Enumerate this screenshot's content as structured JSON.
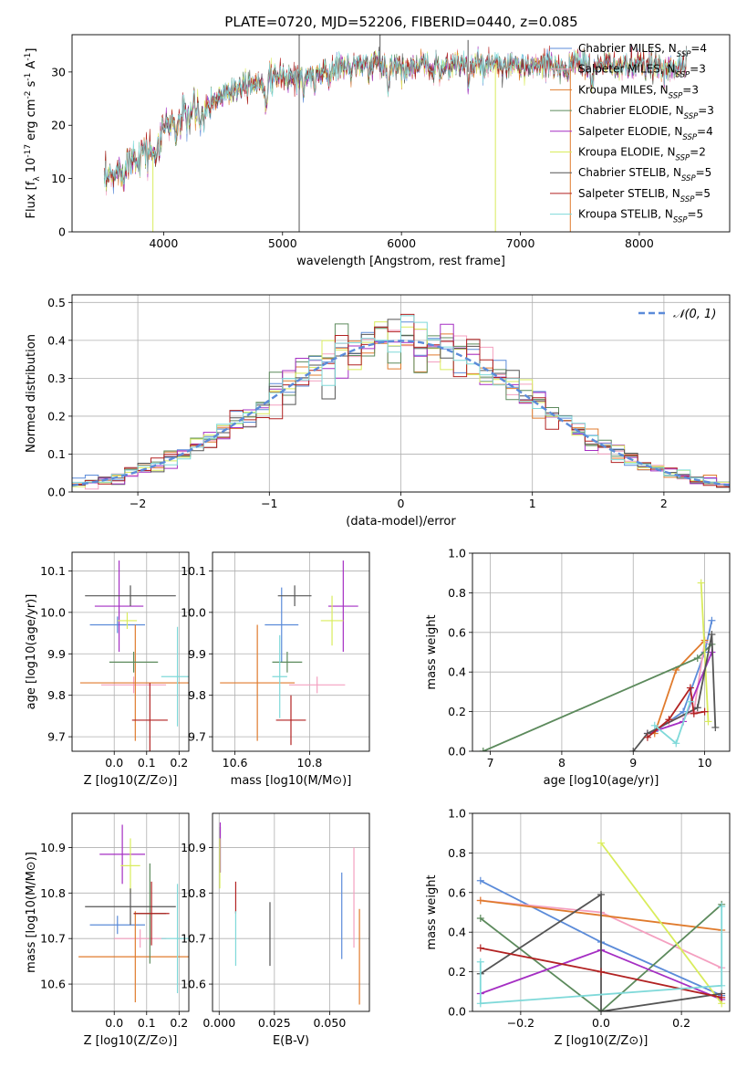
{
  "figure_title": "PLATE=0720, MJD=52206, FIBERID=0440, z=0.085",
  "colors": {
    "Chabrier MILES": "#5b8bd9",
    "Salpeter MILES": "#f4a0c0",
    "Kroupa MILES": "#e07b2d",
    "Chabrier ELODIE": "#5c8a5c",
    "Salpeter ELODIE": "#a52fc3",
    "Kroupa ELODIE": "#d9ec5c",
    "Chabrier STELIB": "#555555",
    "Salpeter STELIB": "#b22222",
    "Kroupa STELIB": "#7fd9d9"
  },
  "chart_data": [
    {
      "id": "spectrum",
      "type": "line",
      "xlabel": "wavelength [Angstrom, rest frame]",
      "ylabel": "Flux [f_λ 10^-17 erg cm^-2 s^-1 A^-1]",
      "xlim": [
        3230,
        8760
      ],
      "ylim": [
        0,
        37
      ],
      "xticks": [
        4000,
        5000,
        6000,
        7000,
        8000
      ],
      "yticks": [
        0,
        10,
        20,
        30
      ],
      "grid": false,
      "legend_position": "lower-right",
      "legend": [
        {
          "name": "Chabrier MILES",
          "n_ssp": 4
        },
        {
          "name": "Salpeter MILES",
          "n_ssp": 3
        },
        {
          "name": "Kroupa MILES",
          "n_ssp": 3
        },
        {
          "name": "Chabrier ELODIE",
          "n_ssp": 3
        },
        {
          "name": "Salpeter ELODIE",
          "n_ssp": 4
        },
        {
          "name": "Kroupa ELODIE",
          "n_ssp": 2
        },
        {
          "name": "Chabrier STELIB",
          "n_ssp": 5
        },
        {
          "name": "Salpeter STELIB",
          "n_ssp": 5
        },
        {
          "name": "Kroupa STELIB",
          "n_ssp": 5
        }
      ],
      "continuum": [
        [
          3500,
          9
        ],
        [
          3600,
          11
        ],
        [
          3700,
          13
        ],
        [
          3800,
          15
        ],
        [
          3900,
          15
        ],
        [
          4000,
          20
        ],
        [
          4100,
          21
        ],
        [
          4200,
          22
        ],
        [
          4300,
          23
        ],
        [
          4400,
          24
        ],
        [
          4500,
          26
        ],
        [
          4600,
          27
        ],
        [
          4700,
          28
        ],
        [
          4800,
          28
        ],
        [
          4900,
          28.5
        ],
        [
          5000,
          29
        ],
        [
          5100,
          29
        ],
        [
          5200,
          29.5
        ],
        [
          5300,
          30
        ],
        [
          5400,
          30
        ],
        [
          5500,
          31
        ],
        [
          5600,
          31
        ],
        [
          5700,
          31
        ],
        [
          5800,
          31.5
        ],
        [
          5900,
          31
        ],
        [
          6000,
          31
        ],
        [
          6100,
          31
        ],
        [
          6200,
          31
        ],
        [
          6300,
          31
        ],
        [
          6400,
          31
        ],
        [
          6500,
          31.5
        ],
        [
          6600,
          31
        ],
        [
          6700,
          31
        ],
        [
          6800,
          31
        ],
        [
          6900,
          31
        ],
        [
          7000,
          31
        ],
        [
          7100,
          31
        ],
        [
          7200,
          31
        ],
        [
          7300,
          31
        ],
        [
          7400,
          31
        ],
        [
          7500,
          31.5
        ],
        [
          7600,
          31
        ],
        [
          7700,
          31
        ],
        [
          7800,
          31
        ],
        [
          7900,
          31
        ],
        [
          8000,
          31
        ],
        [
          8100,
          31
        ],
        [
          8200,
          31
        ],
        [
          8300,
          31
        ],
        [
          8400,
          31
        ]
      ],
      "spikes": [
        {
          "x": 5140,
          "series": "Chabrier STELIB",
          "y_low": 0,
          "y_high": 37
        },
        {
          "x": 3910,
          "series": "Kroupa ELODIE",
          "y_low": 0,
          "y_high": 14
        },
        {
          "x": 6790,
          "series": "Kroupa ELODIE",
          "y_low": 0,
          "y_high": 31
        },
        {
          "x": 7420,
          "series": "Kroupa MILES",
          "y_low": 0,
          "y_high": 31
        },
        {
          "x": 5820,
          "series": "Chabrier STELIB",
          "y_low": 30,
          "y_high": 37
        },
        {
          "x": 6560,
          "series": "Chabrier STELIB",
          "y_low": 30,
          "y_high": 36
        }
      ]
    },
    {
      "id": "residuals",
      "type": "histogram",
      "xlabel": "(data-model)/error",
      "ylabel": "Normed distribution",
      "xlim": [
        -2.5,
        2.5
      ],
      "ylim": [
        0,
        0.52
      ],
      "xticks": [
        -2,
        -1,
        0,
        1,
        2
      ],
      "yticks": [
        0.0,
        0.1,
        0.2,
        0.3,
        0.4,
        0.5
      ],
      "grid": true,
      "legend_position": "upper-right",
      "reference_curve": {
        "name": "𝒩(0, 1)",
        "mean": 0,
        "sigma": 1
      },
      "bin_width": 0.1
    },
    {
      "id": "age_vs_Z",
      "type": "errorbar",
      "xlabel": "Z [log10(Z/Z⊙)]",
      "ylabel": "age [log10(age/yr)]",
      "xlim": [
        -0.13,
        0.23
      ],
      "ylim": [
        9.665,
        10.145
      ],
      "xticks": [
        0.0,
        0.1,
        0.2
      ],
      "yticks": [
        9.7,
        9.8,
        9.9,
        10.0,
        10.1
      ],
      "grid": true,
      "points": [
        {
          "series": "Chabrier MILES",
          "x": 0.01,
          "xerr": 0.085,
          "y": 9.97,
          "yerr": 0.02
        },
        {
          "series": "Salpeter MILES",
          "x": 0.06,
          "xerr": 0.1,
          "y": 9.825,
          "yerr": 0.02
        },
        {
          "series": "Kroupa MILES",
          "x": 0.065,
          "xerr": 0.17,
          "y": 9.83,
          "yerr": 0.14
        },
        {
          "series": "Chabrier ELODIE",
          "x": 0.06,
          "xerr": 0.075,
          "y": 9.88,
          "yerr": 0.025
        },
        {
          "series": "Salpeter ELODIE",
          "x": 0.015,
          "xerr": 0.075,
          "y": 10.015,
          "yerr": 0.11
        },
        {
          "series": "Kroupa ELODIE",
          "x": 0.04,
          "xerr": 0.03,
          "y": 9.98,
          "yerr": 0.02
        },
        {
          "series": "Chabrier STELIB",
          "x": 0.05,
          "xerr": 0.14,
          "y": 10.04,
          "yerr": 0.025
        },
        {
          "series": "Salpeter STELIB",
          "x": 0.11,
          "xerr": 0.055,
          "y": 9.74,
          "yerr": 0.09
        },
        {
          "series": "Kroupa STELIB",
          "x": 0.195,
          "xerr": 0.05,
          "y": 9.845,
          "yerr": 0.12
        }
      ]
    },
    {
      "id": "age_vs_mass",
      "type": "errorbar",
      "xlabel": "mass [log10(M/M⊙)]",
      "ylabel": "",
      "xlim": [
        10.54,
        10.96
      ],
      "ylim": [
        9.665,
        10.145
      ],
      "xticks": [
        10.6,
        10.8
      ],
      "yticks": [
        9.7,
        9.8,
        9.9,
        10.0,
        10.1
      ],
      "grid": true,
      "points": [
        {
          "series": "Chabrier MILES",
          "x": 10.725,
          "xerr": 0.045,
          "y": 9.97,
          "yerr": 0.09
        },
        {
          "series": "Salpeter MILES",
          "x": 10.82,
          "xerr": 0.075,
          "y": 9.825,
          "yerr": 0.02
        },
        {
          "series": "Kroupa MILES",
          "x": 10.66,
          "xerr": 0.1,
          "y": 9.83,
          "yerr": 0.14
        },
        {
          "series": "Chabrier ELODIE",
          "x": 10.74,
          "xerr": 0.04,
          "y": 9.88,
          "yerr": 0.025
        },
        {
          "series": "Salpeter ELODIE",
          "x": 10.89,
          "xerr": 0.04,
          "y": 10.015,
          "yerr": 0.11
        },
        {
          "series": "Kroupa ELODIE",
          "x": 10.86,
          "xerr": 0.03,
          "y": 9.98,
          "yerr": 0.06
        },
        {
          "series": "Chabrier STELIB",
          "x": 10.76,
          "xerr": 0.045,
          "y": 10.04,
          "yerr": 0.025
        },
        {
          "series": "Salpeter STELIB",
          "x": 10.75,
          "xerr": 0.04,
          "y": 9.74,
          "yerr": 0.06
        },
        {
          "series": "Kroupa STELIB",
          "x": 10.72,
          "xerr": 0.02,
          "y": 9.845,
          "yerr": 0.1
        }
      ]
    },
    {
      "id": "weight_vs_age",
      "type": "line",
      "xlabel": "age [log10(age/yr)]",
      "ylabel": "mass weight",
      "xlim": [
        6.75,
        10.35
      ],
      "ylim": [
        0,
        1
      ],
      "xticks": [
        7,
        8,
        9,
        10
      ],
      "yticks": [
        0.0,
        0.2,
        0.4,
        0.6,
        0.8,
        1.0
      ],
      "grid": true,
      "series": [
        {
          "name": "Chabrier MILES",
          "x": [
            9.3,
            9.7,
            10.0,
            10.1
          ],
          "y": [
            0.1,
            0.2,
            0.5,
            0.66
          ]
        },
        {
          "name": "Salpeter MILES",
          "x": [
            9.5,
            9.85,
            10.0
          ],
          "y": [
            0.15,
            0.2,
            0.55
          ]
        },
        {
          "name": "Kroupa MILES",
          "x": [
            9.3,
            9.6,
            10.0
          ],
          "y": [
            0.09,
            0.41,
            0.56
          ]
        },
        {
          "name": "Chabrier ELODIE",
          "x": [
            6.9,
            9.9,
            10.1
          ],
          "y": [
            0.0,
            0.47,
            0.54
          ]
        },
        {
          "name": "Salpeter ELODIE",
          "x": [
            9.2,
            9.7,
            10.1
          ],
          "y": [
            0.09,
            0.15,
            0.5
          ]
        },
        {
          "name": "Kroupa ELODIE",
          "x": [
            9.95,
            10.05
          ],
          "y": [
            0.85,
            0.15
          ]
        },
        {
          "name": "Chabrier STELIB",
          "x": [
            9.0,
            9.2,
            9.9,
            10.1,
            10.15
          ],
          "y": [
            0.0,
            0.09,
            0.22,
            0.59,
            0.12
          ]
        },
        {
          "name": "Salpeter STELIB",
          "x": [
            9.2,
            9.5,
            9.8,
            9.85,
            10.0
          ],
          "y": [
            0.07,
            0.16,
            0.32,
            0.19,
            0.2
          ]
        },
        {
          "name": "Kroupa STELIB",
          "x": [
            9.3,
            9.6,
            9.8
          ],
          "y": [
            0.13,
            0.04,
            0.25
          ]
        }
      ]
    },
    {
      "id": "mass_vs_Z",
      "type": "errorbar",
      "xlabel": "Z [log10(Z/Z⊙)]",
      "ylabel": "mass [log10(M/M⊙)]",
      "xlim": [
        -0.13,
        0.23
      ],
      "ylim": [
        10.54,
        10.975
      ],
      "xticks": [
        0.0,
        0.1,
        0.2
      ],
      "yticks": [
        10.6,
        10.7,
        10.8,
        10.9
      ],
      "grid": true,
      "points": [
        {
          "series": "Chabrier MILES",
          "x": 0.01,
          "xerr": 0.085,
          "y": 10.73,
          "yerr": 0.02
        },
        {
          "series": "Salpeter MILES",
          "x": 0.08,
          "xerr": 0.08,
          "y": 10.7,
          "yerr": 0.02
        },
        {
          "series": "Kroupa MILES",
          "x": 0.065,
          "xerr": 0.175,
          "y": 10.66,
          "yerr": 0.1
        },
        {
          "series": "Chabrier ELODIE",
          "x": 0.11,
          "xerr": 0.05,
          "y": 10.755,
          "yerr": 0.11
        },
        {
          "series": "Salpeter ELODIE",
          "x": 0.025,
          "xerr": 0.07,
          "y": 10.885,
          "yerr": 0.065
        },
        {
          "series": "Kroupa ELODIE",
          "x": 0.05,
          "xerr": 0.03,
          "y": 10.86,
          "yerr": 0.06
        },
        {
          "series": "Chabrier STELIB",
          "x": 0.05,
          "xerr": 0.14,
          "y": 10.77,
          "yerr": 0.04
        },
        {
          "series": "Salpeter STELIB",
          "x": 0.115,
          "xerr": 0.055,
          "y": 10.755,
          "yerr": 0.07
        },
        {
          "series": "Kroupa STELIB",
          "x": 0.195,
          "xerr": 0.05,
          "y": 10.7,
          "yerr": 0.12
        }
      ]
    },
    {
      "id": "mass_vs_ebv",
      "type": "errorbar",
      "xlabel": "E(B-V)",
      "ylabel": "",
      "xlim": [
        -0.003,
        0.068
      ],
      "ylim": [
        10.54,
        10.975
      ],
      "xticks": [
        0.0,
        0.025,
        0.05
      ],
      "yticks": [
        10.6,
        10.7,
        10.8,
        10.9
      ],
      "grid": true,
      "points": [
        {
          "series": "Chabrier MILES",
          "x": 0.0555,
          "y": 10.75,
          "yerr": 0.095
        },
        {
          "series": "Salpeter MILES",
          "x": 0.061,
          "y": 10.79,
          "yerr": 0.11
        },
        {
          "series": "Kroupa MILES",
          "x": 0.0635,
          "y": 10.66,
          "yerr": 0.105
        },
        {
          "series": "Chabrier ELODIE",
          "x": 0.0005,
          "y": 10.895,
          "yerr": 0.05
        },
        {
          "series": "Salpeter ELODIE",
          "x": 0.0005,
          "y": 10.9,
          "yerr": 0.055
        },
        {
          "series": "Kroupa ELODIE",
          "x": 0.0003,
          "y": 10.865,
          "yerr": 0.055
        },
        {
          "series": "Chabrier STELIB",
          "x": 0.023,
          "y": 10.71,
          "yerr": 0.07
        },
        {
          "series": "Salpeter STELIB",
          "x": 0.0075,
          "y": 10.79,
          "yerr": 0.035
        },
        {
          "series": "Kroupa STELIB",
          "x": 0.0075,
          "y": 10.7,
          "yerr": 0.06
        }
      ]
    },
    {
      "id": "weight_vs_Z",
      "type": "line",
      "xlabel": "Z [log10(Z/Z⊙)]",
      "ylabel": "mass weight",
      "xlim": [
        -0.32,
        0.32
      ],
      "ylim": [
        0,
        1
      ],
      "xticks": [
        -0.2,
        0.0,
        0.2
      ],
      "yticks": [
        0.0,
        0.2,
        0.4,
        0.6,
        0.8,
        1.0
      ],
      "grid": true,
      "series": [
        {
          "name": "Chabrier MILES",
          "x": [
            -0.3,
            0.0,
            0.3
          ],
          "y": [
            0.66,
            0.35,
            0.08
          ]
        },
        {
          "name": "Salpeter MILES",
          "x": [
            -0.3,
            0.0,
            0.3
          ],
          "y": [
            0.56,
            0.5,
            0.22
          ]
        },
        {
          "name": "Kroupa MILES",
          "x": [
            -0.3,
            0.3
          ],
          "y": [
            0.56,
            0.41
          ]
        },
        {
          "name": "Chabrier ELODIE",
          "x": [
            -0.3,
            0.0,
            0.3
          ],
          "y": [
            0.47,
            0.0,
            0.54
          ]
        },
        {
          "name": "Salpeter ELODIE",
          "x": [
            -0.3,
            0.0,
            0.3
          ],
          "y": [
            0.09,
            0.31,
            0.06
          ]
        },
        {
          "name": "Kroupa ELODIE",
          "x": [
            0.0,
            0.3
          ],
          "y": [
            0.85,
            0.04
          ]
        },
        {
          "name": "Chabrier STELIB",
          "x": [
            -0.3,
            0.0,
            0.0,
            0.3
          ],
          "y": [
            0.19,
            0.59,
            0.0,
            0.09
          ]
        },
        {
          "name": "Salpeter STELIB",
          "x": [
            -0.3,
            0.0,
            0.3
          ],
          "y": [
            0.32,
            0.2,
            0.07
          ]
        },
        {
          "name": "Kroupa STELIB",
          "x": [
            -0.3,
            -0.3,
            0.3,
            0.3
          ],
          "y": [
            0.25,
            0.04,
            0.13,
            0.53
          ]
        }
      ]
    }
  ]
}
